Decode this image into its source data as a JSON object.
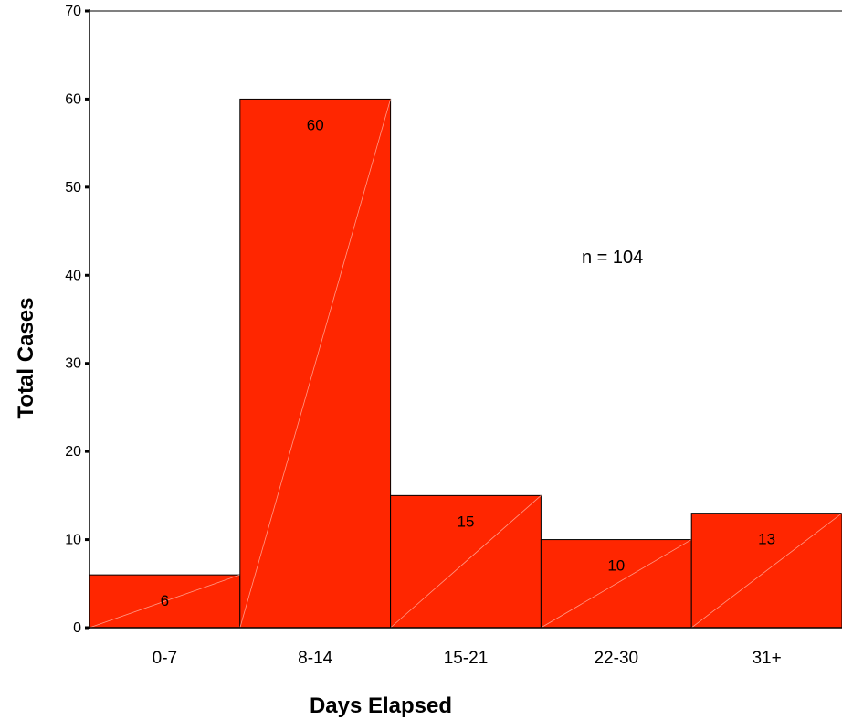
{
  "chart_data": {
    "type": "bar",
    "categories": [
      "0-7",
      "8-14",
      "15-21",
      "22-30",
      "31+"
    ],
    "values": [
      6,
      60,
      15,
      10,
      13
    ],
    "data_labels": [
      "6",
      "60",
      "15",
      "10",
      "13"
    ],
    "xlabel": "Days Elapsed",
    "ylabel": "Total Cases",
    "ylim": [
      0,
      70
    ],
    "yticks": [
      "0",
      "10",
      "20",
      "30",
      "40",
      "50",
      "60",
      "70"
    ],
    "annotation": "n = 104",
    "grid": false,
    "legend": "none",
    "colors": {
      "bar": "#ff2600",
      "edge": "#000000"
    }
  }
}
